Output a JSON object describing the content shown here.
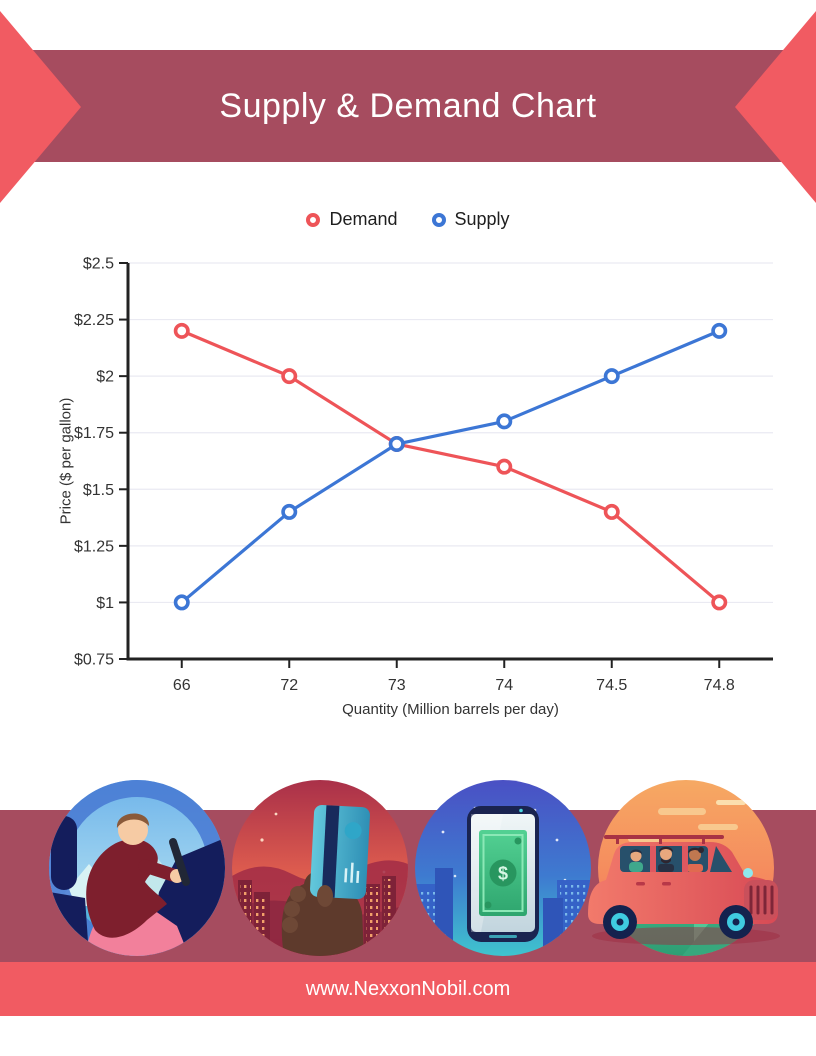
{
  "header": {
    "title": "Supply & Demand Chart"
  },
  "theme": {
    "ribbon_band": "#A64C5F",
    "ribbon_arrow": "#F15B62",
    "bottom_band": "#A64C5F",
    "footer_band": "#F15B62",
    "title_color": "#FFFFFF",
    "grid_color": "#EAEAF2",
    "axis_color": "#222222",
    "tick_text_color": "#333333"
  },
  "legend": {
    "items": [
      {
        "label": "Demand"
      },
      {
        "label": "Supply"
      }
    ]
  },
  "chart_data": {
    "type": "line",
    "categories": [
      "66",
      "72",
      "73",
      "74",
      "74.5",
      "74.8"
    ],
    "series": [
      {
        "name": "Demand",
        "color": "#EE5458",
        "values": [
          2.2,
          2.0,
          1.7,
          1.6,
          1.4,
          1.0
        ]
      },
      {
        "name": "Supply",
        "color": "#3C76D5",
        "values": [
          1.0,
          1.4,
          1.7,
          1.8,
          2.0,
          2.2
        ]
      }
    ],
    "xlabel": "Quantity (Million barrels per day)",
    "ylabel": "Price ($ per gallon)",
    "ylim": [
      0.75,
      2.5
    ],
    "y_ticks": [
      {
        "value": 0.75,
        "label": "$0.75"
      },
      {
        "value": 1,
        "label": "$1"
      },
      {
        "value": 1.25,
        "label": "$1.25"
      },
      {
        "value": 1.5,
        "label": "$1.5"
      },
      {
        "value": 1.75,
        "label": "$1.75"
      },
      {
        "value": 2,
        "label": "$2"
      },
      {
        "value": 2.25,
        "label": "$2.25"
      },
      {
        "value": 2.5,
        "label": "$2.5"
      }
    ],
    "grid": "horizontal",
    "legend_position": "top",
    "marker_style": "open-circle"
  },
  "illustrations": {
    "items": [
      {
        "icon": "driver-at-wheel-illustration"
      },
      {
        "icon": "hand-holding-credit-card-illustration"
      },
      {
        "icon": "phone-with-dollar-bill-illustration"
      },
      {
        "icon": "family-car-trip-illustration"
      }
    ]
  },
  "footer": {
    "url": "www.NexxonNobil.com"
  }
}
